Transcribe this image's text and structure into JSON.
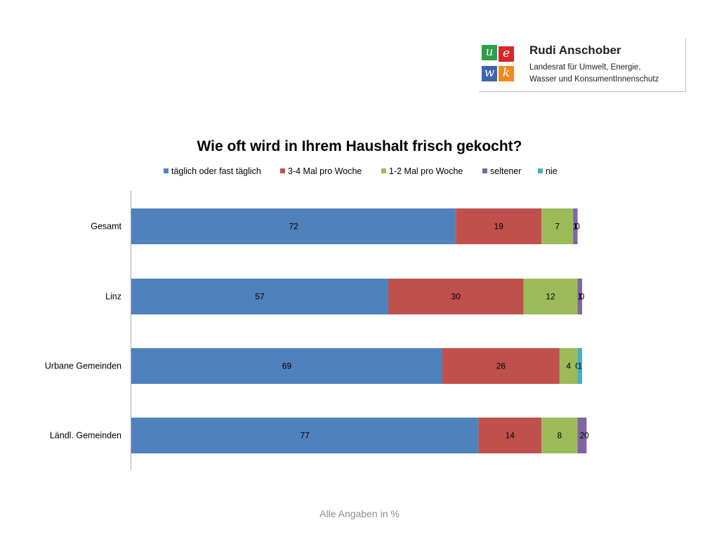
{
  "logo": {
    "tiles": [
      "u",
      "e",
      "w",
      "k"
    ],
    "tile_colors": [
      "#2e9e48",
      "#d8262b",
      "#3f63ad",
      "#ef8a1e"
    ],
    "name": "Rudi Anschober",
    "line1": "Landesrat für Umwelt, Energie,",
    "line2": "Wasser und KonsumentInnenschutz"
  },
  "footnote": "Alle Angaben in %",
  "chart_data": {
    "type": "bar",
    "orientation": "horizontal",
    "stacked": true,
    "title": "Wie oft wird in Ihrem Haushalt frisch gekocht?",
    "legend_position": "top",
    "grid": false,
    "xlim": [
      0,
      100
    ],
    "categories": [
      "Gesamt",
      "Linz",
      "Urbane Gemeinden",
      "Ländl. Gemeinden"
    ],
    "series": [
      {
        "name": "täglich oder fast täglich",
        "color": "#4f81bd",
        "values": [
          72,
          57,
          69,
          77
        ]
      },
      {
        "name": "3-4 Mal pro Woche",
        "color": "#c0504d",
        "values": [
          19,
          30,
          26,
          14
        ]
      },
      {
        "name": "1-2 Mal pro Woche",
        "color": "#9bbb59",
        "values": [
          7,
          12,
          4,
          8
        ]
      },
      {
        "name": "seltener",
        "color": "#8064a2",
        "values": [
          1,
          1,
          0,
          2
        ]
      },
      {
        "name": "nie",
        "color": "#4bacc6",
        "values": [
          0,
          0,
          1,
          0
        ]
      }
    ]
  }
}
